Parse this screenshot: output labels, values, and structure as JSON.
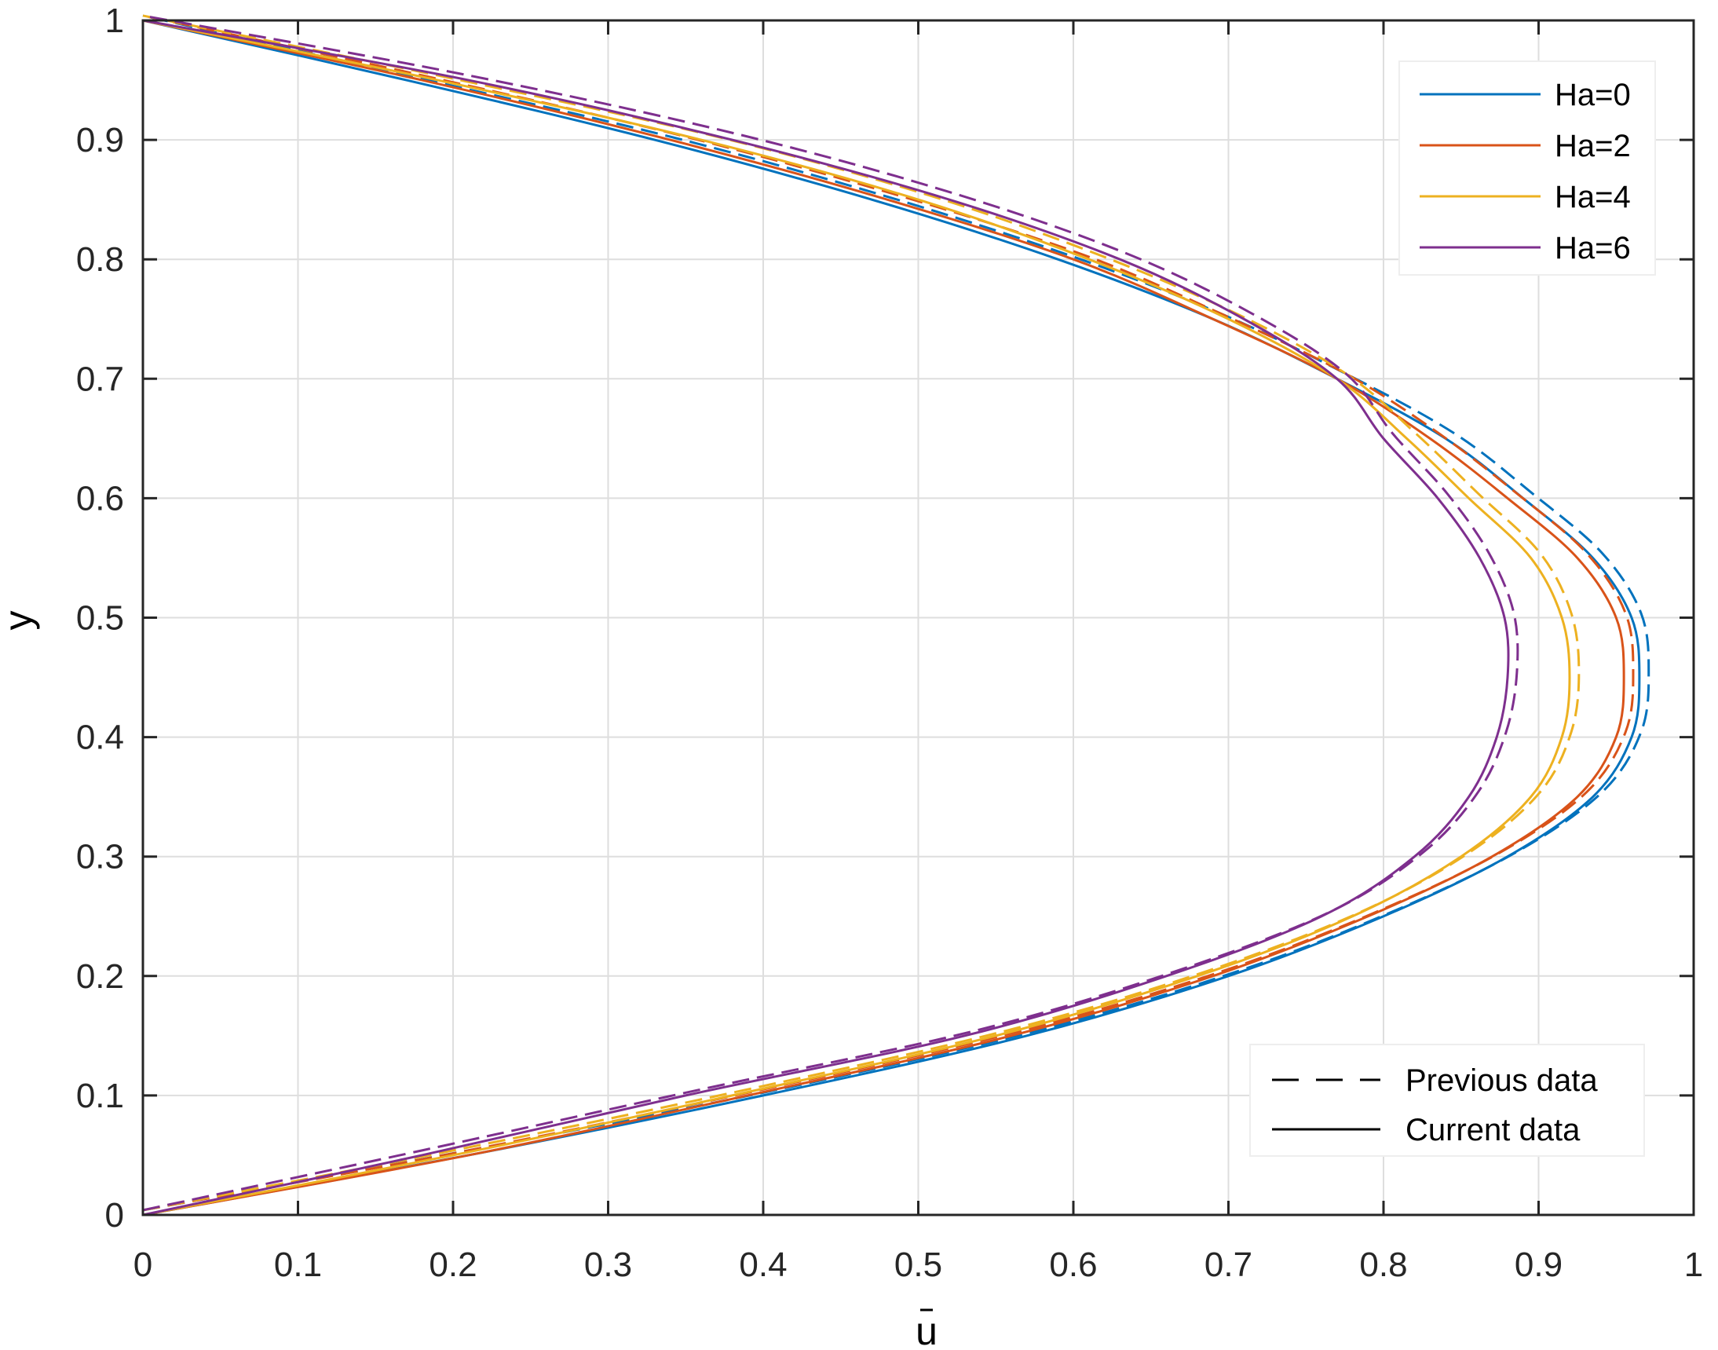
{
  "chart_data": {
    "type": "line",
    "title": "",
    "xlabel": "u̅",
    "ylabel": "y̅",
    "xlabel_text": "u",
    "ylabel_text": "y",
    "xlim": [
      0,
      1
    ],
    "ylim": [
      0,
      1
    ],
    "grid": true,
    "xticks": [
      "0",
      "0.1",
      "0.2",
      "0.3",
      "0.4",
      "0.5",
      "0.6",
      "0.7",
      "0.8",
      "0.9",
      "1"
    ],
    "yticks": [
      "0",
      "0.1",
      "0.2",
      "0.3",
      "0.4",
      "0.5",
      "0.6",
      "0.7",
      "0.8",
      "0.9",
      "1"
    ],
    "legend_position": "upper right",
    "style_legend_position": "lower right",
    "series": [
      {
        "name": "Ha=0",
        "color": "#0072BD",
        "peak_u": 0.965,
        "peak_y": 0.47,
        "y": [
          0,
          0.05,
          0.1,
          0.15,
          0.2,
          0.25,
          0.3,
          0.35,
          0.4,
          0.45,
          0.5,
          0.55,
          0.6,
          0.65,
          0.7,
          0.75,
          0.8,
          0.85,
          0.9,
          0.95,
          1
        ],
        "u": [
          0,
          0.21,
          0.4,
          0.57,
          0.7,
          0.8,
          0.88,
          0.935,
          0.96,
          0.965,
          0.96,
          0.935,
          0.89,
          0.84,
          0.77,
          0.69,
          0.59,
          0.47,
          0.33,
          0.17,
          0
        ]
      },
      {
        "name": "Ha=2",
        "color": "#D95319",
        "peak_u": 0.955,
        "peak_y": 0.47,
        "y": [
          0,
          0.05,
          0.1,
          0.15,
          0.2,
          0.25,
          0.3,
          0.35,
          0.4,
          0.45,
          0.5,
          0.55,
          0.6,
          0.65,
          0.7,
          0.75,
          0.8,
          0.85,
          0.9,
          0.95,
          1
        ],
        "u": [
          0,
          0.21,
          0.39,
          0.56,
          0.69,
          0.79,
          0.87,
          0.925,
          0.95,
          0.955,
          0.95,
          0.925,
          0.88,
          0.83,
          0.77,
          0.69,
          0.6,
          0.48,
          0.34,
          0.18,
          0
        ]
      },
      {
        "name": "Ha=4",
        "color": "#EDB120",
        "peak_u": 0.92,
        "peak_y": 0.47,
        "y": [
          0,
          0.05,
          0.1,
          0.15,
          0.2,
          0.25,
          0.3,
          0.35,
          0.4,
          0.45,
          0.5,
          0.55,
          0.6,
          0.65,
          0.7,
          0.75,
          0.8,
          0.85,
          0.9,
          0.95,
          1
        ],
        "u": [
          0,
          0.2,
          0.38,
          0.55,
          0.68,
          0.78,
          0.85,
          0.895,
          0.915,
          0.92,
          0.915,
          0.895,
          0.855,
          0.815,
          0.77,
          0.7,
          0.61,
          0.5,
          0.36,
          0.19,
          0
        ]
      },
      {
        "name": "Ha=6",
        "color": "#7E2F8E",
        "peak_u": 0.88,
        "peak_y": 0.48,
        "y": [
          0,
          0.05,
          0.1,
          0.15,
          0.2,
          0.25,
          0.3,
          0.35,
          0.4,
          0.45,
          0.5,
          0.55,
          0.6,
          0.65,
          0.7,
          0.75,
          0.8,
          0.85,
          0.9,
          0.95,
          1
        ],
        "u": [
          0,
          0.18,
          0.35,
          0.53,
          0.66,
          0.76,
          0.82,
          0.855,
          0.873,
          0.88,
          0.878,
          0.862,
          0.835,
          0.8,
          0.77,
          0.71,
          0.63,
          0.52,
          0.38,
          0.21,
          0
        ]
      }
    ],
    "line_styles": [
      {
        "name": "Previous data",
        "dash": "dashed"
      },
      {
        "name": "Current data",
        "dash": "solid"
      }
    ]
  },
  "legend": {
    "series_labels": [
      "Ha=0",
      "Ha=2",
      "Ha=4",
      "Ha=6"
    ],
    "style_labels": [
      "Previous data",
      "Current data"
    ]
  },
  "axes": {
    "xlabel": "u",
    "ylabel": "y"
  }
}
